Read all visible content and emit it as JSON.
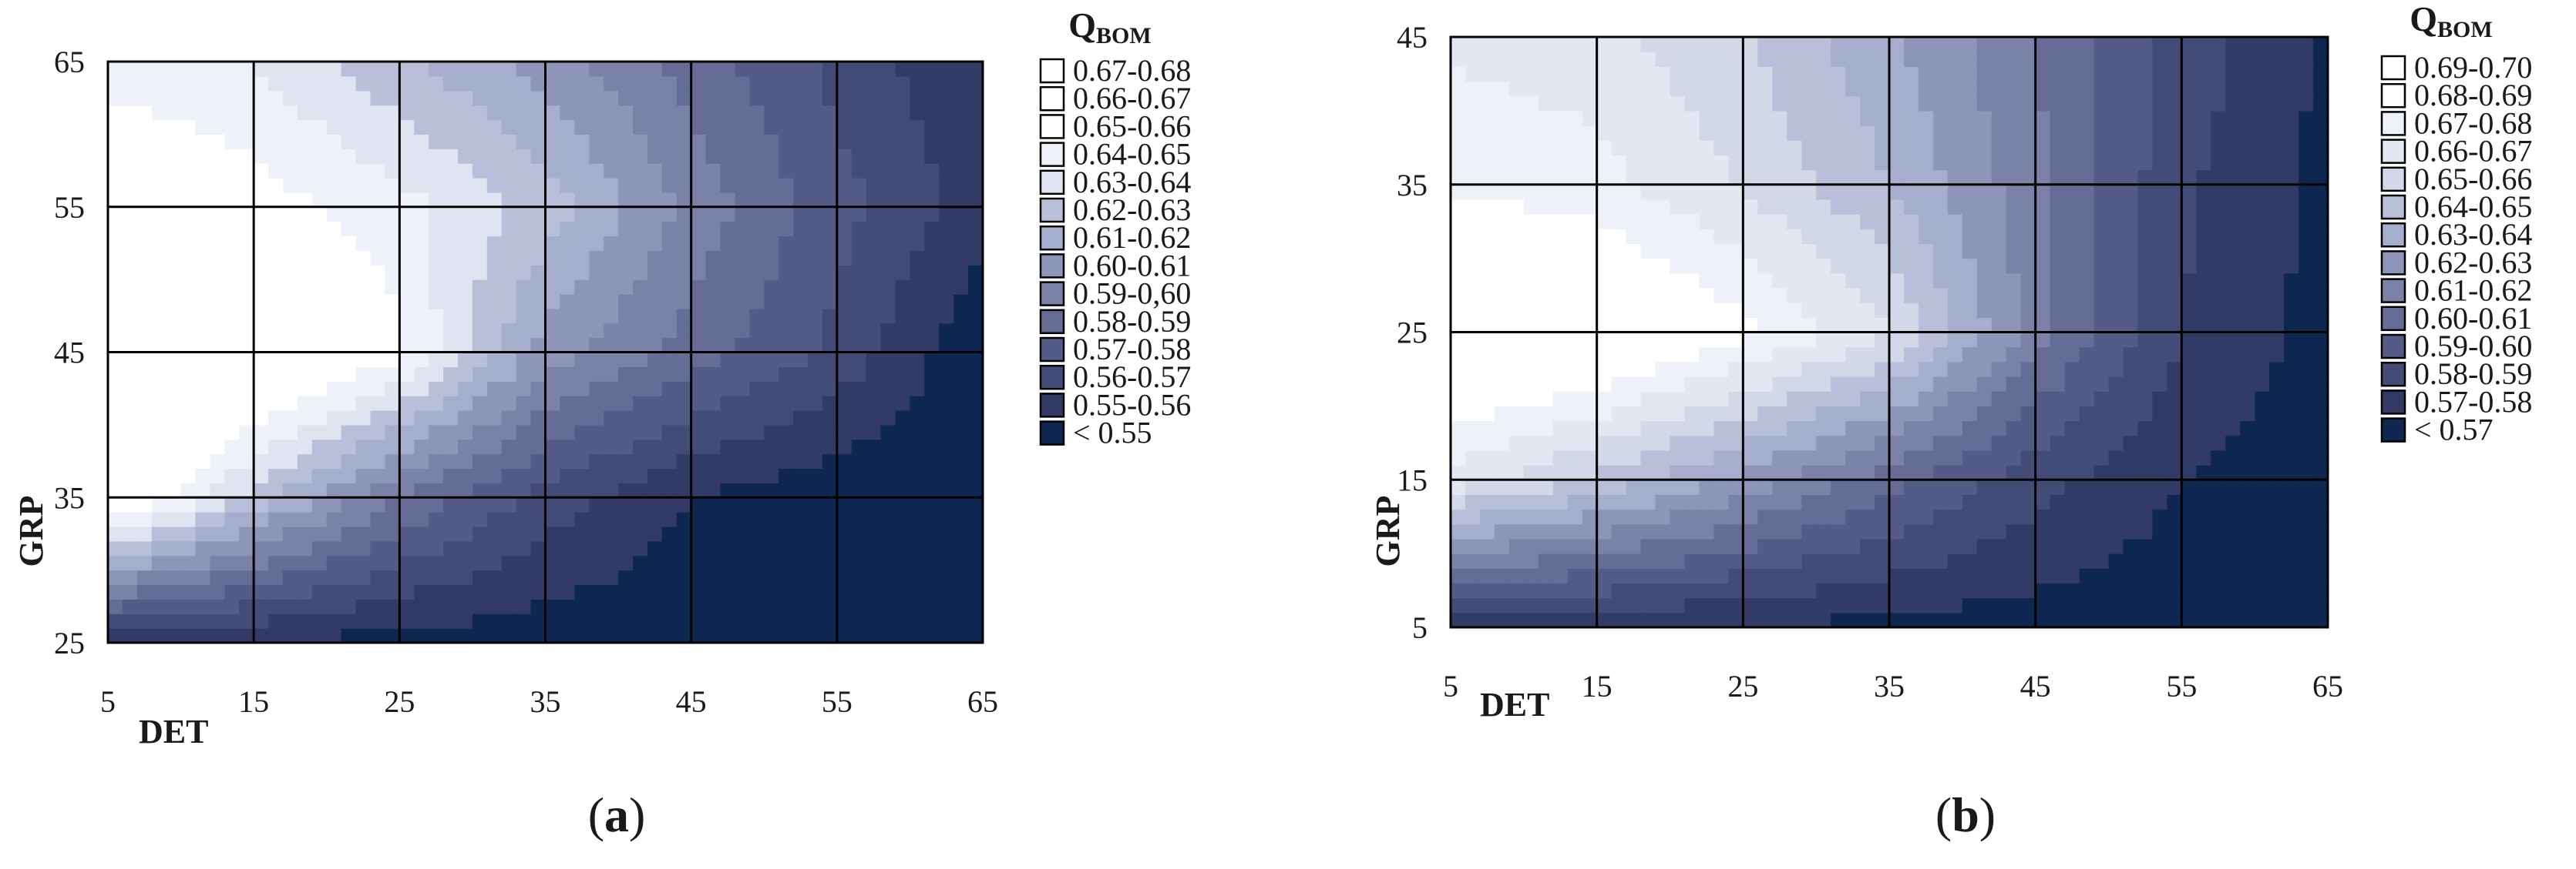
{
  "chart_data": [
    {
      "type": "heatmap",
      "panel_label": "a",
      "xlabel": "DET",
      "ylabel": "GRP",
      "x_ticks": [
        "5",
        "15",
        "25",
        "35",
        "45",
        "55",
        "65"
      ],
      "y_ticks": [
        "25",
        "35",
        "45",
        "55",
        "65"
      ],
      "xlim": [
        5,
        65
      ],
      "ylim": [
        25,
        65
      ],
      "grid": true,
      "legend": {
        "title_main": "Q",
        "title_sub": "BOM",
        "placement": "right",
        "entries": [
          "0.67-0.68",
          "0.66-0.67",
          "0.65-0.66",
          "0.64-0.65",
          "0.63-0.64",
          "0.62-0.63",
          "0.61-0.62",
          "0.60-0.61",
          "0.59-0,60",
          "0.58-0.59",
          "0.57-0.58",
          "0.56-0.57",
          "0.55-0.56",
          "< 0.55"
        ],
        "colors": [
          "#ffffff",
          "#ffffff",
          "#ffffff",
          "#eef1f8",
          "#dfe4f0",
          "#b8c0d9",
          "#a5aecd",
          "#8d95b9",
          "#7a82a8",
          "#656d96",
          "#535b86",
          "#434c77",
          "#323b65",
          "#0d2750"
        ]
      },
      "x": [
        5,
        15,
        25,
        35,
        45,
        55,
        65
      ],
      "y": [
        25,
        35,
        45,
        55,
        65
      ],
      "z": [
        [
          0.553,
          0.549,
          0.546,
          0.544,
          0.542,
          0.541,
          0.54
        ],
        [
          0.668,
          0.626,
          0.59,
          0.566,
          0.55,
          0.543,
          0.541
        ],
        [
          0.69,
          0.676,
          0.652,
          0.605,
          0.585,
          0.567,
          0.541
        ],
        [
          0.666,
          0.655,
          0.644,
          0.626,
          0.597,
          0.574,
          0.555
        ],
        [
          0.645,
          0.64,
          0.622,
          0.606,
          0.586,
          0.567,
          0.55
        ]
      ]
    },
    {
      "type": "heatmap",
      "panel_label": "b",
      "xlabel": "DET",
      "ylabel": "GRP",
      "x_ticks": [
        "5",
        "15",
        "25",
        "35",
        "45",
        "55",
        "65"
      ],
      "y_ticks": [
        "5",
        "15",
        "25",
        "35",
        "45"
      ],
      "xlim": [
        5,
        65
      ],
      "ylim": [
        5,
        45
      ],
      "grid": true,
      "legend": {
        "title_main": "Q",
        "title_sub": "BOM",
        "placement": "right",
        "entries": [
          "0.69-0.70",
          "0.68-0.69",
          "0.67-0.68",
          "0.66-0.67",
          "0.65-0.66",
          "0.64-0.65",
          "0.63-0.64",
          "0.62-0.63",
          "0.61-0.62",
          "0.60-0.61",
          "0.59-0.60",
          "0.58-0.59",
          "0.57-0.58",
          "< 0.57"
        ],
        "colors": [
          "#ffffff",
          "#ffffff",
          "#eef1f8",
          "#e3e7f2",
          "#d3d8e8",
          "#b8c0d9",
          "#a5aecd",
          "#8d95b9",
          "#7a82a8",
          "#656d96",
          "#535b86",
          "#434c77",
          "#323b65",
          "#0d2750"
        ]
      },
      "x": [
        5,
        15,
        25,
        35,
        45,
        55,
        65
      ],
      "y": [
        5,
        15,
        25,
        35,
        45
      ],
      "z": [
        [
          0.575,
          0.572,
          0.569,
          0.567,
          0.565,
          0.563,
          0.562
        ],
        [
          0.666,
          0.648,
          0.627,
          0.604,
          0.584,
          0.57,
          0.564
        ],
        [
          0.706,
          0.699,
          0.683,
          0.661,
          0.615,
          0.58,
          0.566
        ],
        [
          0.678,
          0.674,
          0.659,
          0.64,
          0.613,
          0.582,
          0.567
        ],
        [
          0.668,
          0.664,
          0.651,
          0.632,
          0.61,
          0.586,
          0.568
        ]
      ]
    }
  ]
}
